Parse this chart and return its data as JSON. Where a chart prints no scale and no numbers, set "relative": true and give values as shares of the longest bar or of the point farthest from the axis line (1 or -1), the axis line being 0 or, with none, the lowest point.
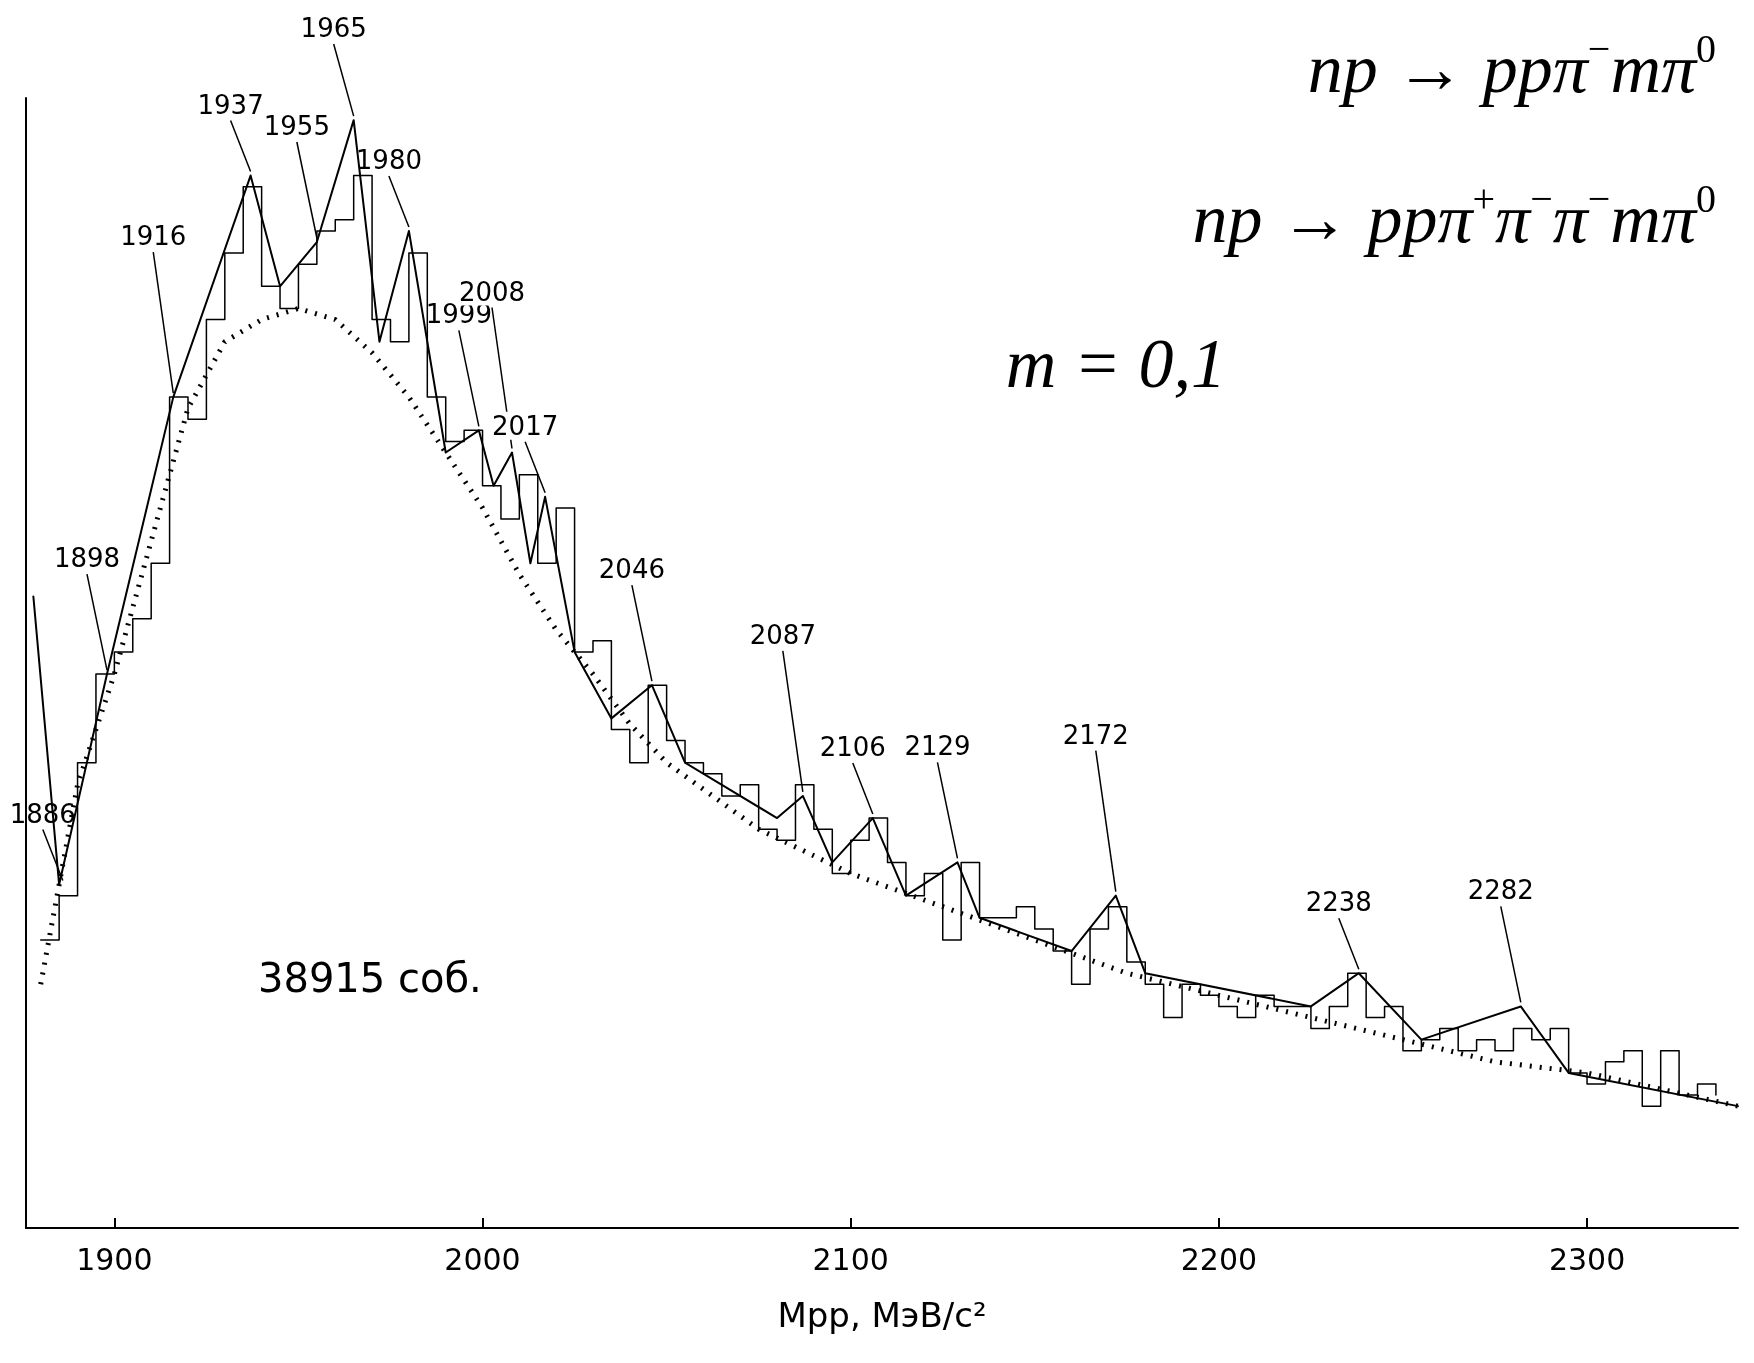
{
  "chart_data": {
    "type": "line",
    "relative": true,
    "xlabel": "Мрр, МэВ/с²",
    "xlim": [
      1876,
      2341
    ],
    "xticks": [
      1900,
      2000,
      2100,
      2200,
      2300
    ],
    "grid": false,
    "marker": "none",
    "series": [
      {
        "type": "step",
        "color": "#000000",
        "x": [
          1880,
          1885,
          1890,
          1895,
          1900,
          1905,
          1910,
          1915,
          1920,
          1925,
          1930,
          1935,
          1940,
          1945,
          1950,
          1955,
          1960,
          1965,
          1970,
          1975,
          1980,
          1985,
          1990,
          1995,
          2000,
          2005,
          2010,
          2015,
          2020,
          2025,
          2030,
          2035,
          2040,
          2045,
          2050,
          2055,
          2060,
          2065,
          2070,
          2075,
          2080,
          2085,
          2090,
          2095,
          2100,
          2105,
          2110,
          2115,
          2120,
          2125,
          2130,
          2135,
          2140,
          2145,
          2150,
          2155,
          2160,
          2165,
          2170,
          2175,
          2180,
          2185,
          2190,
          2195,
          2200,
          2205,
          2210,
          2215,
          2220,
          2225,
          2230,
          2235,
          2240,
          2245,
          2250,
          2255,
          2260,
          2265,
          2270,
          2275,
          2280,
          2285,
          2290,
          2295,
          2300,
          2305,
          2310,
          2315,
          2320,
          2325,
          2330,
          2335
        ],
        "values": [
          0.26,
          0.3,
          0.42,
          0.5,
          0.52,
          0.55,
          0.6,
          0.75,
          0.73,
          0.82,
          0.88,
          0.94,
          0.85,
          0.83,
          0.87,
          0.9,
          0.91,
          0.95,
          0.82,
          0.8,
          0.88,
          0.75,
          0.71,
          0.72,
          0.67,
          0.64,
          0.68,
          0.6,
          0.65,
          0.52,
          0.53,
          0.45,
          0.42,
          0.49,
          0.44,
          0.42,
          0.41,
          0.39,
          0.4,
          0.36,
          0.35,
          0.4,
          0.36,
          0.32,
          0.35,
          0.37,
          0.33,
          0.3,
          0.32,
          0.26,
          0.33,
          0.28,
          0.28,
          0.29,
          0.27,
          0.25,
          0.22,
          0.27,
          0.29,
          0.24,
          0.22,
          0.19,
          0.22,
          0.21,
          0.2,
          0.19,
          0.21,
          0.2,
          0.2,
          0.18,
          0.2,
          0.23,
          0.19,
          0.2,
          0.16,
          0.17,
          0.18,
          0.16,
          0.17,
          0.16,
          0.18,
          0.17,
          0.18,
          0.14,
          0.13,
          0.15,
          0.16,
          0.11,
          0.16,
          0.12,
          0.13,
          0.12
        ]
      },
      {
        "type": "line",
        "color": "#000000",
        "line_style": "solid",
        "x": [
          1878,
          1885,
          1898,
          1916,
          1937,
          1945,
          1955,
          1965,
          1972,
          1980,
          1990,
          1999,
          2003,
          2008,
          2013,
          2017,
          2025,
          2035,
          2046,
          2055,
          2080,
          2087,
          2095,
          2106,
          2115,
          2129,
          2135,
          2160,
          2172,
          2180,
          2225,
          2238,
          2255,
          2282,
          2295,
          2341
        ],
        "values": [
          0.57,
          0.31,
          0.5,
          0.75,
          0.95,
          0.85,
          0.89,
          1,
          0.8,
          0.9,
          0.7,
          0.72,
          0.67,
          0.7,
          0.6,
          0.66,
          0.52,
          0.46,
          0.49,
          0.42,
          0.37,
          0.39,
          0.33,
          0.37,
          0.3,
          0.33,
          0.28,
          0.25,
          0.3,
          0.23,
          0.2,
          0.23,
          0.17,
          0.2,
          0.14,
          0.11
        ]
      },
      {
        "type": "line",
        "color": "#000000",
        "line_style": "dotted",
        "x": [
          1880,
          1890,
          1900,
          1910,
          1920,
          1930,
          1940,
          1950,
          1960,
          1970,
          1980,
          1990,
          2000,
          2010,
          2020,
          2030,
          2040,
          2050,
          2075,
          2100,
          2125,
          2150,
          2175,
          2200,
          2225,
          2250,
          2275,
          2300,
          2341
        ],
        "values": [
          0.22,
          0.4,
          0.5,
          0.62,
          0.74,
          0.8,
          0.82,
          0.83,
          0.82,
          0.79,
          0.75,
          0.7,
          0.65,
          0.59,
          0.54,
          0.5,
          0.455,
          0.42,
          0.36,
          0.32,
          0.29,
          0.26,
          0.23,
          0.21,
          0.19,
          0.17,
          0.15,
          0.14,
          0.11
        ]
      }
    ],
    "annotations": [
      "np → ppπ$^{−}$mπ$^{0}$",
      "np → ppπ$^{+}$π$^{−}$π$^{−}$mπ$^{0}$",
      "m = 0,1",
      "38915 соб.",
      {
        "text": "1886",
        "x": 1886,
        "y": 0.31
      },
      {
        "text": "1898",
        "x": 1898,
        "y": 0.5
      },
      {
        "text": "1916",
        "x": 1916,
        "y": 0.75
      },
      {
        "text": "1937",
        "x": 1937,
        "y": 0.95
      },
      {
        "text": "1955",
        "x": 1955,
        "y": 0.89
      },
      {
        "text": "1965",
        "x": 1965,
        "y": 1
      },
      {
        "text": "1980",
        "x": 1980,
        "y": 0.9
      },
      {
        "text": "1999",
        "x": 1999,
        "y": 0.72
      },
      {
        "text": "2008",
        "x": 2008,
        "y": 0.7
      },
      {
        "text": "2017",
        "x": 2017,
        "y": 0.66
      },
      {
        "text": "2046",
        "x": 2046,
        "y": 0.49
      },
      {
        "text": "2087",
        "x": 2087,
        "y": 0.39
      },
      {
        "text": "2106",
        "x": 2106,
        "y": 0.37
      },
      {
        "text": "2129",
        "x": 2129,
        "y": 0.33
      },
      {
        "text": "2172",
        "x": 2172,
        "y": 0.3
      },
      {
        "text": "2238",
        "x": 2238,
        "y": 0.23
      },
      {
        "text": "2282",
        "x": 2282,
        "y": 0.2
      }
    ]
  }
}
